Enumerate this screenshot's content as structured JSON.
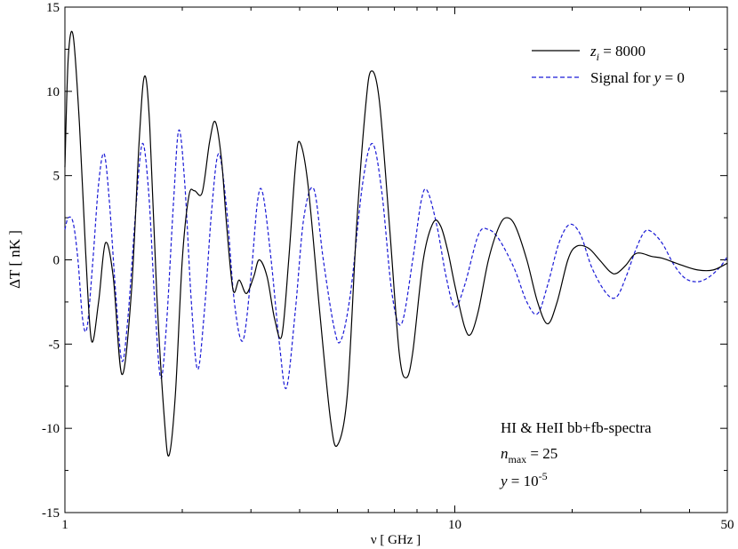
{
  "chart_data": {
    "type": "line",
    "xscale": "log",
    "xlim": [
      1,
      50
    ],
    "ylim": [
      -15,
      15
    ],
    "xlabel": "ν [ GHz ]",
    "ylabel": "ΔT [ nK ]",
    "xticks": [
      1,
      10,
      50
    ],
    "xtick_labels": [
      "1",
      "10",
      "50"
    ],
    "yticks": [
      -15,
      -10,
      -5,
      0,
      5,
      10,
      15
    ],
    "ytick_labels": [
      "-15",
      "-10",
      "-5",
      "0",
      "5",
      "10",
      "15"
    ],
    "grid": false,
    "legend_position": "top-right",
    "series": [
      {
        "name": "z_i = 8000",
        "name_parts": [
          "z",
          "i",
          " = 8000"
        ],
        "color": "#000000",
        "style": "solid",
        "points": [
          [
            1.0,
            5.5
          ],
          [
            1.02,
            12.0
          ],
          [
            1.05,
            13.3
          ],
          [
            1.09,
            8.0
          ],
          [
            1.13,
            0.5
          ],
          [
            1.17,
            -4.8
          ],
          [
            1.22,
            -2.5
          ],
          [
            1.27,
            1.0
          ],
          [
            1.33,
            -1.0
          ],
          [
            1.4,
            -6.8
          ],
          [
            1.48,
            -2.0
          ],
          [
            1.55,
            7.0
          ],
          [
            1.6,
            10.9
          ],
          [
            1.65,
            8.0
          ],
          [
            1.72,
            -2.0
          ],
          [
            1.8,
            -9.5
          ],
          [
            1.85,
            -11.6
          ],
          [
            1.92,
            -8.0
          ],
          [
            2.0,
            0.0
          ],
          [
            2.08,
            3.8
          ],
          [
            2.15,
            4.1
          ],
          [
            2.25,
            4.0
          ],
          [
            2.35,
            7.0
          ],
          [
            2.43,
            8.2
          ],
          [
            2.52,
            6.0
          ],
          [
            2.6,
            2.0
          ],
          [
            2.7,
            -1.8
          ],
          [
            2.8,
            -1.2
          ],
          [
            2.92,
            -2.0
          ],
          [
            3.05,
            -1.0
          ],
          [
            3.15,
            0.0
          ],
          [
            3.3,
            -1.0
          ],
          [
            3.45,
            -3.5
          ],
          [
            3.6,
            -4.5
          ],
          [
            3.75,
            0.0
          ],
          [
            3.9,
            5.5
          ],
          [
            4.0,
            7.0
          ],
          [
            4.2,
            4.5
          ],
          [
            4.5,
            -3.0
          ],
          [
            4.8,
            -9.5
          ],
          [
            5.0,
            -11.0
          ],
          [
            5.3,
            -8.0
          ],
          [
            5.6,
            2.0
          ],
          [
            5.9,
            9.0
          ],
          [
            6.1,
            11.2
          ],
          [
            6.4,
            9.5
          ],
          [
            6.8,
            2.0
          ],
          [
            7.2,
            -5.5
          ],
          [
            7.5,
            -7.0
          ],
          [
            7.8,
            -5.5
          ],
          [
            8.3,
            0.0
          ],
          [
            8.8,
            2.2
          ],
          [
            9.2,
            2.0
          ],
          [
            9.6,
            0.5
          ],
          [
            10.0,
            -1.5
          ],
          [
            10.6,
            -4.0
          ],
          [
            11.0,
            -4.4
          ],
          [
            11.5,
            -3.0
          ],
          [
            12.2,
            0.0
          ],
          [
            13.0,
            2.0
          ],
          [
            13.6,
            2.5
          ],
          [
            14.3,
            2.0
          ],
          [
            15.3,
            0.0
          ],
          [
            16.3,
            -2.5
          ],
          [
            17.3,
            -3.8
          ],
          [
            18.3,
            -2.5
          ],
          [
            19.5,
            0.0
          ],
          [
            20.5,
            0.8
          ],
          [
            22.0,
            0.7
          ],
          [
            23.5,
            0.0
          ],
          [
            25.0,
            -0.7
          ],
          [
            26.0,
            -0.8
          ],
          [
            27.5,
            -0.3
          ],
          [
            28.8,
            0.3
          ],
          [
            30.0,
            0.4
          ],
          [
            32.0,
            0.2
          ],
          [
            34.0,
            0.1
          ],
          [
            38.0,
            -0.3
          ],
          [
            42.0,
            -0.6
          ],
          [
            46.0,
            -0.6
          ],
          [
            50.0,
            -0.2
          ]
        ]
      },
      {
        "name": "Signal for y = 0",
        "name_parts": [
          "Signal for ",
          "y",
          " = 0"
        ],
        "color": "#1a1ad6",
        "style": "dashed",
        "points": [
          [
            1.0,
            1.8
          ],
          [
            1.02,
            2.5
          ],
          [
            1.05,
            2.2
          ],
          [
            1.08,
            0.0
          ],
          [
            1.11,
            -3.5
          ],
          [
            1.14,
            -4.0
          ],
          [
            1.18,
            0.0
          ],
          [
            1.22,
            4.5
          ],
          [
            1.26,
            6.3
          ],
          [
            1.3,
            3.5
          ],
          [
            1.35,
            -2.0
          ],
          [
            1.4,
            -6.0
          ],
          [
            1.45,
            -3.5
          ],
          [
            1.52,
            3.0
          ],
          [
            1.58,
            6.9
          ],
          [
            1.64,
            4.0
          ],
          [
            1.7,
            -2.5
          ],
          [
            1.76,
            -7.0
          ],
          [
            1.82,
            -4.0
          ],
          [
            1.9,
            3.5
          ],
          [
            1.96,
            7.7
          ],
          [
            2.03,
            4.5
          ],
          [
            2.11,
            -2.5
          ],
          [
            2.19,
            -6.5
          ],
          [
            2.28,
            -3.0
          ],
          [
            2.38,
            3.0
          ],
          [
            2.48,
            6.3
          ],
          [
            2.6,
            3.0
          ],
          [
            2.72,
            -2.5
          ],
          [
            2.86,
            -4.8
          ],
          [
            3.0,
            -1.0
          ],
          [
            3.12,
            3.5
          ],
          [
            3.22,
            3.9
          ],
          [
            3.38,
            0.0
          ],
          [
            3.55,
            -5.0
          ],
          [
            3.7,
            -7.6
          ],
          [
            3.9,
            -3.0
          ],
          [
            4.1,
            2.5
          ],
          [
            4.35,
            4.2
          ],
          [
            4.6,
            0.0
          ],
          [
            4.9,
            -4.0
          ],
          [
            5.1,
            -4.8
          ],
          [
            5.4,
            -2.0
          ],
          [
            5.8,
            4.5
          ],
          [
            6.15,
            6.9
          ],
          [
            6.5,
            4.0
          ],
          [
            6.9,
            -2.0
          ],
          [
            7.3,
            -3.8
          ],
          [
            7.8,
            0.0
          ],
          [
            8.2,
            3.5
          ],
          [
            8.5,
            4.1
          ],
          [
            9.0,
            2.0
          ],
          [
            9.5,
            -1.0
          ],
          [
            10.0,
            -2.8
          ],
          [
            10.6,
            -1.5
          ],
          [
            11.5,
            1.5
          ],
          [
            12.2,
            1.8
          ],
          [
            13.0,
            1.2
          ],
          [
            14.2,
            -0.5
          ],
          [
            15.3,
            -2.5
          ],
          [
            16.3,
            -3.2
          ],
          [
            17.3,
            -1.5
          ],
          [
            18.5,
            1.0
          ],
          [
            19.7,
            2.1
          ],
          [
            21.0,
            1.5
          ],
          [
            22.5,
            -0.5
          ],
          [
            24.5,
            -2.0
          ],
          [
            26.0,
            -2.2
          ],
          [
            27.5,
            -1.0
          ],
          [
            29.0,
            0.5
          ],
          [
            30.5,
            1.6
          ],
          [
            31.8,
            1.7
          ],
          [
            34.0,
            1.0
          ],
          [
            36.5,
            -0.3
          ],
          [
            39.0,
            -1.1
          ],
          [
            42.0,
            -1.3
          ],
          [
            45.0,
            -1.0
          ],
          [
            48.0,
            -0.4
          ],
          [
            50.0,
            0.2
          ]
        ]
      }
    ],
    "annotations": [
      {
        "parts": [
          "HI & HeII bb+fb-spectra"
        ]
      },
      {
        "parts": [
          "n",
          "max",
          " = 25"
        ]
      },
      {
        "parts": [
          "y",
          " = 10",
          "-5"
        ]
      }
    ]
  }
}
